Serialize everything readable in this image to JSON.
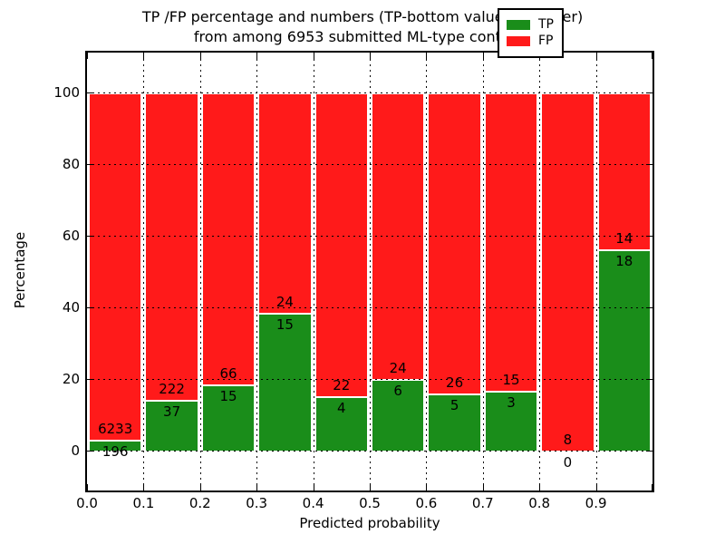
{
  "title": {
    "line1": "TP /FP percentage and numbers (TP-bottom value, FP-upper)",
    "line2": "from among 6953 submitted ML-type contacts"
  },
  "chart_data": {
    "type": "bar",
    "stacked": true,
    "normalized_to_percent": true,
    "title": "TP /FP percentage and numbers (TP-bottom value, FP-upper) from among 6953 submitted ML-type contacts",
    "xlabel": "Predicted probability",
    "ylabel": "Percentage",
    "total_contacts": 6953,
    "bin_edges": [
      0.0,
      0.1,
      0.2,
      0.3,
      0.4,
      0.5,
      0.6,
      0.7,
      0.8,
      0.9,
      1.0
    ],
    "xtick_labels": [
      "0.0",
      "0.1",
      "0.2",
      "0.3",
      "0.4",
      "0.5",
      "0.6",
      "0.7",
      "0.8",
      "0.9"
    ],
    "ytick_values": [
      0,
      20,
      40,
      60,
      80,
      100
    ],
    "xlim": [
      0.0,
      1.0
    ],
    "ylim": [
      -11,
      111
    ],
    "grid": true,
    "grid_style": "dotted",
    "series": [
      {
        "name": "TP",
        "color": "#1a8d1a",
        "counts": [
          196,
          37,
          15,
          15,
          4,
          6,
          5,
          3,
          0,
          18
        ]
      },
      {
        "name": "FP",
        "color": "#ff1a1a",
        "counts": [
          6233,
          222,
          66,
          24,
          22,
          24,
          26,
          15,
          8,
          14
        ]
      }
    ],
    "tp_percent_of_bin": [
      3.05,
      14.29,
      18.52,
      38.46,
      15.38,
      20.0,
      16.13,
      16.67,
      0.0,
      56.25
    ],
    "legend": {
      "position": "upper right",
      "entries": [
        {
          "label": "TP",
          "color": "#1a8d1a"
        },
        {
          "label": "FP",
          "color": "#ff1a1a"
        }
      ]
    }
  }
}
